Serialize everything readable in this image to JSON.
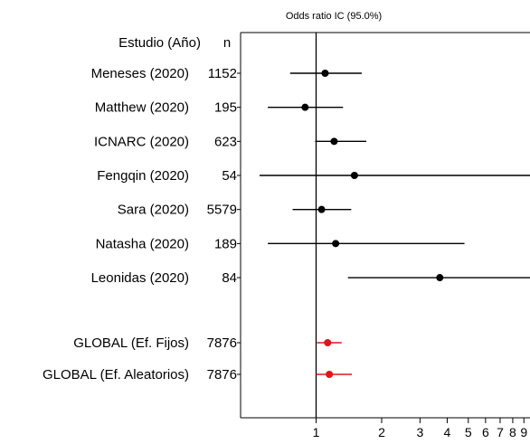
{
  "chart_data": {
    "type": "forest",
    "title": "Odds ratio IC  (95.0%)",
    "xscale": "log",
    "xlim": [
      0.45,
      9.6
    ],
    "null_line": 1,
    "header": {
      "study": "Estudio  (Año)",
      "n": "n"
    },
    "studies": [
      {
        "name": "Meneses (2020)",
        "n": "1152",
        "or": 1.1,
        "low": 0.76,
        "high": 1.62
      },
      {
        "name": "Matthew (2020)",
        "n": "195",
        "or": 0.89,
        "low": 0.6,
        "high": 1.33
      },
      {
        "name": "ICNARC (2020)",
        "n": "623",
        "or": 1.21,
        "low": 0.99,
        "high": 1.7
      },
      {
        "name": "Fengqin (2020)",
        "n": "54",
        "or": 1.5,
        "low": 0.55,
        "high": 9.6
      },
      {
        "name": "Sara (2020)",
        "n": "5579",
        "or": 1.06,
        "low": 0.78,
        "high": 1.45
      },
      {
        "name": "Natasha (2020)",
        "n": "189",
        "or": 1.23,
        "low": 0.6,
        "high": 4.8
      },
      {
        "name": "Leonidas (2020)",
        "n": "84",
        "or": 3.7,
        "low": 1.4,
        "high": 9.6
      }
    ],
    "pooled": [
      {
        "name": "GLOBAL (Ef. Fijos)",
        "n": "7876",
        "or": 1.13,
        "low": 1.01,
        "high": 1.31
      },
      {
        "name": "GLOBAL (Ef. Aleatorios)",
        "n": "7876",
        "or": 1.15,
        "low": 1.0,
        "high": 1.46
      }
    ],
    "xticks": [
      1,
      2,
      3,
      4,
      5,
      6,
      7,
      8,
      9
    ],
    "xtick_labels": [
      "1",
      "2",
      "3",
      "4",
      "5",
      "6",
      "7",
      "8",
      "9"
    ],
    "colors": {
      "study_marker": "#000000",
      "pooled_marker": "#e0151a",
      "line": "#000000"
    }
  }
}
